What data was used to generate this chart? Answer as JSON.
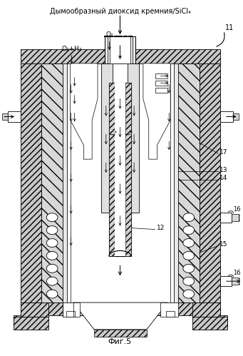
{
  "title_top": "Дымообразный диоксид кремния/SiCl₄",
  "caption": "Фиг.5",
  "label_11": "11",
  "label_12": "12",
  "label_13": "13",
  "label_14": "14",
  "label_15": "15",
  "label_16": "16",
  "label_17": "17",
  "label_o2h2": "O₂+H₂",
  "label_o2": "O₂",
  "bg_color": "#ffffff",
  "line_color": "#000000",
  "hatch_fc": "#c8c8c8",
  "white": "#ffffff"
}
